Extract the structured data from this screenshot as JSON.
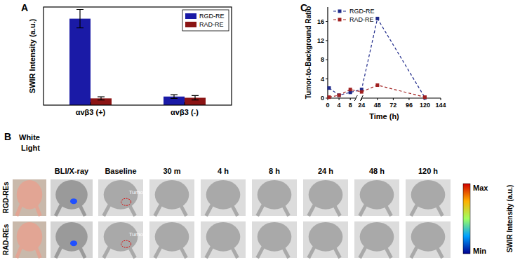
{
  "panel_labels": [
    "A",
    "B",
    "C"
  ],
  "chart_data": [
    {
      "type": "bar",
      "y_label": "SWIR Intensity (a.u.)",
      "categories": [
        "αvβ3 (+)",
        "αvβ3 (-)"
      ],
      "series": [
        {
          "name": "RGD-RE",
          "color": "#1a1aa6",
          "values": [
            14.1,
            1.4
          ],
          "errors": [
            1.5,
            0.3
          ]
        },
        {
          "name": "RAD-RE",
          "color": "#8b1414",
          "values": [
            1.1,
            1.2
          ],
          "errors": [
            0.25,
            0.35
          ]
        }
      ],
      "ylim": [
        0,
        16
      ],
      "tick_labels": "x",
      "legend": "upper right"
    },
    {
      "type": "line",
      "x_label": "Time (h)",
      "y_label": "Tumor-to-Background Ratio",
      "x": [
        0.5,
        4,
        8,
        24,
        48,
        120
      ],
      "series": [
        {
          "name": "RGD-RE",
          "color": "#1f2a8a",
          "values": [
            2.1,
            0.6,
            1.2,
            1.8,
            16.6,
            0.1
          ]
        },
        {
          "name": "RAD-RE",
          "color": "#a02020",
          "values": [
            0.2,
            0.6,
            1.8,
            1.3,
            2.7,
            0.2
          ]
        }
      ],
      "xlim": [
        0,
        144
      ],
      "xticks": [
        0,
        4,
        8,
        24,
        48,
        72,
        96,
        120,
        144
      ],
      "ylim": [
        0,
        19
      ],
      "yticks": [
        0,
        4,
        8,
        12,
        16
      ],
      "legend": "upper left",
      "marker": "square",
      "line_style": "dashed"
    }
  ],
  "panel_b": {
    "columns": [
      "White Light",
      "BLI/X-ray",
      "Baseline",
      "30 m",
      "4 h",
      "8 h",
      "24 h",
      "48 h",
      "120 h"
    ],
    "rows": [
      "RGD-REs",
      "RAD-REs"
    ],
    "annotation": "Tumor",
    "colorbar": {
      "max_label": "Max",
      "min_label": "Min",
      "label": "SWIR Intensity (a.u.)"
    }
  }
}
